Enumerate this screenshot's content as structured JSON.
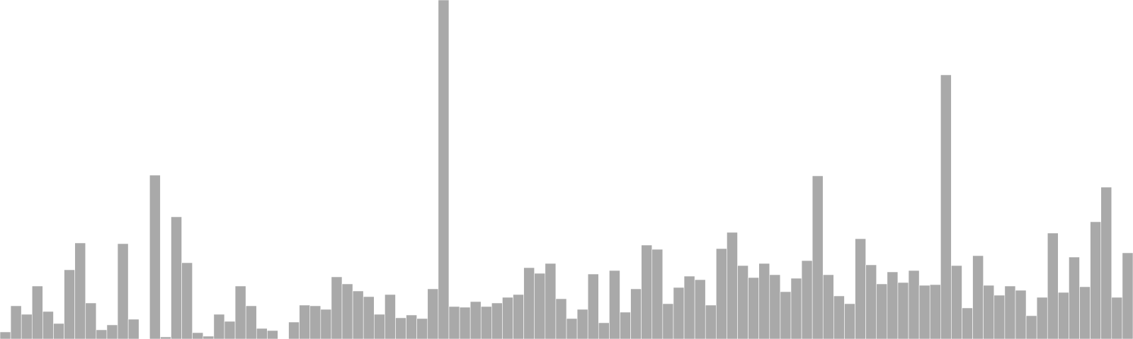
{
  "chart_data": {
    "type": "bar",
    "title": "",
    "xlabel": "",
    "ylabel": "",
    "ylim": [
      0,
      480
    ],
    "grid": false,
    "legend": "none",
    "bar_color": "#a9a9a9",
    "values": [
      10,
      47,
      35,
      75,
      39,
      22,
      98,
      136,
      51,
      13,
      20,
      135,
      28,
      0,
      232,
      3,
      173,
      108,
      9,
      4,
      35,
      25,
      75,
      47,
      15,
      12,
      0,
      24,
      48,
      47,
      42,
      88,
      78,
      68,
      60,
      35,
      63,
      30,
      34,
      29,
      71,
      480,
      46,
      45,
      53,
      46,
      51,
      59,
      63,
      101,
      93,
      107,
      57,
      29,
      42,
      92,
      23,
      97,
      38,
      71,
      133,
      127,
      50,
      73,
      89,
      84,
      48,
      128,
      151,
      104,
      87,
      107,
      91,
      67,
      86,
      111,
      231,
      91,
      61,
      50,
      142,
      105,
      78,
      95,
      80,
      97,
      76,
      77,
      374,
      104,
      44,
      118,
      76,
      62,
      75,
      69,
      33,
      59,
      150,
      66,
      116,
      74,
      166,
      215,
      59,
      122
    ]
  }
}
